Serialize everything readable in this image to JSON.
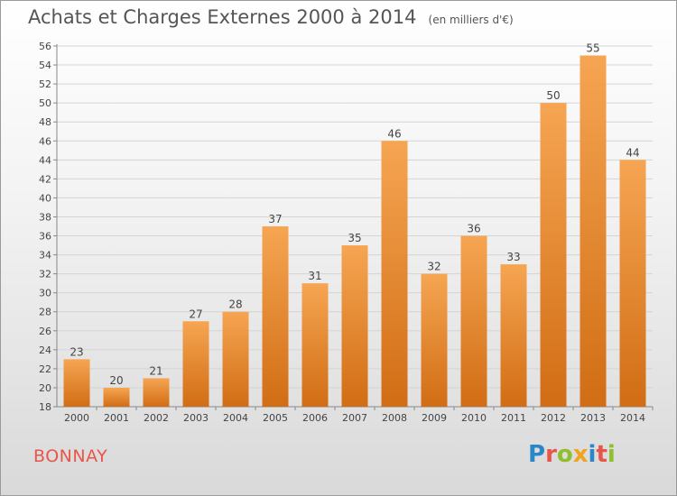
{
  "header": {
    "title": "Achats et Charges Externes 2000 à 2014",
    "subtitle": "(en milliers d'€)"
  },
  "footer": {
    "city": "BONNAY",
    "logo_letters": [
      {
        "char": "P",
        "color": "#2b88c8"
      },
      {
        "char": "r",
        "color": "#e8564a"
      },
      {
        "char": "o",
        "color": "#8fbf2a"
      },
      {
        "char": "x",
        "color": "#f2a21c"
      },
      {
        "char": "i",
        "color": "#2b88c8"
      },
      {
        "char": "t",
        "color": "#e8564a"
      },
      {
        "char": "i",
        "color": "#8fbf2a"
      }
    ]
  },
  "chart_data": {
    "type": "bar",
    "categories": [
      "2000",
      "2001",
      "2002",
      "2003",
      "2004",
      "2005",
      "2006",
      "2007",
      "2008",
      "2009",
      "2010",
      "2011",
      "2012",
      "2013",
      "2014"
    ],
    "values": [
      23,
      20,
      21,
      27,
      28,
      37,
      31,
      35,
      46,
      32,
      36,
      33,
      50,
      55,
      44
    ],
    "ylim": [
      18,
      56
    ],
    "yticks": [
      18,
      20,
      22,
      24,
      26,
      28,
      30,
      32,
      34,
      36,
      38,
      40,
      42,
      44,
      46,
      48,
      50,
      52,
      54,
      56
    ],
    "grid": true,
    "bar_color_top": "#f6a552",
    "bar_color_bottom": "#d16d14"
  }
}
